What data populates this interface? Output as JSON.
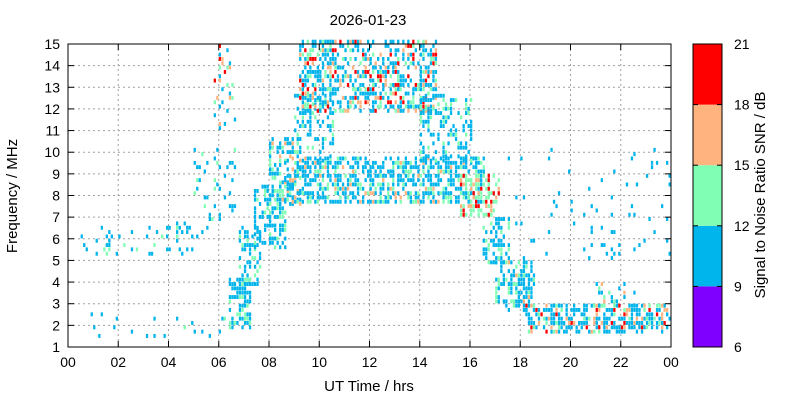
{
  "chart_data": {
    "type": "heatmap",
    "title": "2026-01-23",
    "xlabel": "UT Time / hrs",
    "ylabel": "Frequency / MHz",
    "xlim": [
      0,
      24
    ],
    "ylim": [
      1,
      15
    ],
    "x_ticks": [
      "00",
      "02",
      "04",
      "06",
      "08",
      "10",
      "12",
      "14",
      "16",
      "18",
      "20",
      "22",
      "00"
    ],
    "y_ticks": [
      "1",
      "2",
      "3",
      "4",
      "5",
      "6",
      "7",
      "8",
      "9",
      "10",
      "11",
      "12",
      "13",
      "14",
      "15"
    ],
    "grid": true,
    "colorbar": {
      "label": "Signal to Noise Ratio SNR / dB",
      "ticks": [
        "6",
        "9",
        "12",
        "15",
        "18",
        "21"
      ],
      "bins": [
        {
          "range": [
            6,
            9
          ],
          "color": "#8000ff"
        },
        {
          "range": [
            9,
            12
          ],
          "color": "#00b4ec"
        },
        {
          "range": [
            12,
            15
          ],
          "color": "#80ffb4"
        },
        {
          "range": [
            15,
            18
          ],
          "color": "#ffb480"
        },
        {
          "range": [
            18,
            21
          ],
          "color": "#ff0000"
        }
      ]
    },
    "regions": [
      {
        "t": [
          0.0,
          6.2
        ],
        "f": [
          1.4,
          2.6
        ],
        "density": 0.05,
        "snr": [
          9,
          13
        ]
      },
      {
        "t": [
          0.5,
          5.5
        ],
        "f": [
          5.2,
          6.8
        ],
        "density": 0.12,
        "snr": [
          9,
          14
        ]
      },
      {
        "t": [
          5.0,
          6.6
        ],
        "f": [
          6.8,
          10.0
        ],
        "density": 0.12,
        "snr": [
          9,
          15
        ]
      },
      {
        "t": [
          5.8,
          6.6
        ],
        "f": [
          11.0,
          15.0
        ],
        "density": 0.15,
        "snr": [
          9,
          21
        ]
      },
      {
        "t": [
          6.4,
          7.2
        ],
        "f": [
          1.8,
          4.2
        ],
        "density": 0.55,
        "snr": [
          9,
          14
        ]
      },
      {
        "t": [
          6.8,
          7.6
        ],
        "f": [
          3.8,
          6.5
        ],
        "density": 0.45,
        "snr": [
          9,
          14
        ]
      },
      {
        "t": [
          7.4,
          8.6
        ],
        "f": [
          5.5,
          8.5
        ],
        "density": 0.5,
        "snr": [
          9,
          16
        ]
      },
      {
        "t": [
          8.0,
          9.2
        ],
        "f": [
          7.5,
          10.5
        ],
        "density": 0.45,
        "snr": [
          9,
          18
        ]
      },
      {
        "t": [
          9.0,
          10.5
        ],
        "f": [
          9.5,
          12.5
        ],
        "density": 0.35,
        "snr": [
          9,
          14
        ]
      },
      {
        "t": [
          8.6,
          16.5
        ],
        "f": [
          7.6,
          9.6
        ],
        "density": 0.55,
        "snr": [
          9,
          16
        ]
      },
      {
        "t": [
          9.2,
          14.6
        ],
        "f": [
          11.8,
          15.0
        ],
        "density": 0.5,
        "snr": [
          9,
          21
        ]
      },
      {
        "t": [
          14.0,
          16.0
        ],
        "f": [
          9.5,
          12.5
        ],
        "density": 0.35,
        "snr": [
          9,
          15
        ]
      },
      {
        "t": [
          15.6,
          17.2
        ],
        "f": [
          7.0,
          8.8
        ],
        "density": 0.5,
        "snr": [
          12,
          21
        ]
      },
      {
        "t": [
          16.5,
          17.6
        ],
        "f": [
          4.8,
          7.0
        ],
        "density": 0.4,
        "snr": [
          9,
          14
        ]
      },
      {
        "t": [
          17.0,
          18.6
        ],
        "f": [
          2.6,
          5.0
        ],
        "density": 0.5,
        "snr": [
          9,
          16
        ]
      },
      {
        "t": [
          18.2,
          24.0
        ],
        "f": [
          1.6,
          3.0
        ],
        "density": 0.55,
        "snr": [
          9,
          21
        ]
      },
      {
        "t": [
          21.0,
          22.6
        ],
        "f": [
          2.8,
          4.0
        ],
        "density": 0.3,
        "snr": [
          9,
          18
        ]
      },
      {
        "t": [
          17.5,
          24.0
        ],
        "f": [
          5.0,
          10.0
        ],
        "density": 0.03,
        "snr": [
          9,
          12
        ]
      }
    ]
  }
}
